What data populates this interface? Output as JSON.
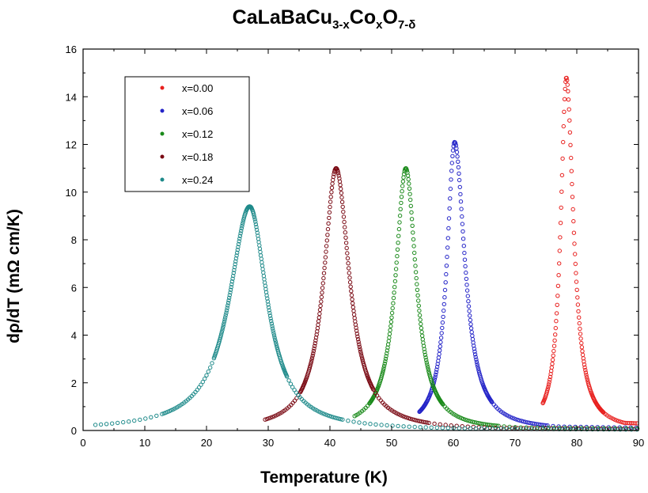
{
  "chart_data": {
    "type": "scatter",
    "title_main": "CaLaBaCu",
    "title_sub1": "3-x",
    "title_mid": "Co",
    "title_sub2": "x",
    "title_end": "O",
    "title_sub3": "7-δ",
    "xlabel": "Temperature (K)",
    "ylabel": "dρ/dT (mΩ cm/K)",
    "xlim": [
      0,
      90
    ],
    "ylim": [
      0,
      16
    ],
    "xticks": [
      "0",
      "10",
      "20",
      "30",
      "40",
      "50",
      "60",
      "70",
      "80",
      "90"
    ],
    "yticks": [
      "0",
      "2",
      "4",
      "6",
      "8",
      "10",
      "12",
      "14",
      "16"
    ],
    "legend_position": "top-left",
    "grid": false,
    "series": [
      {
        "name": "x=0.00",
        "color": "#e8201e",
        "peak_x": 78.3,
        "peak_y": 14.8,
        "width_left": 1.1,
        "width_right": 1.4,
        "x_start": 74.5,
        "x_end": 90,
        "tail": 0.4
      },
      {
        "name": "x=0.06",
        "color": "#2424c8",
        "peak_x": 60.2,
        "peak_y": 12.1,
        "width_left": 1.5,
        "width_right": 2.0,
        "x_start": 54.5,
        "x_end": 90,
        "tail": 0.25
      },
      {
        "name": "x=0.12",
        "color": "#1a8a1a",
        "peak_x": 52.3,
        "peak_y": 11.0,
        "width_left": 2.0,
        "width_right": 2.0,
        "x_start": 44,
        "x_end": 90,
        "tail": 0.2
      },
      {
        "name": "x=0.18",
        "color": "#7a0a14",
        "peak_x": 41.0,
        "peak_y": 11.0,
        "width_left": 2.4,
        "width_right": 2.6,
        "x_start": 29.5,
        "x_end": 90,
        "tail": 0.2
      },
      {
        "name": "x=0.24",
        "color": "#1e8a8a",
        "peak_x": 27.0,
        "peak_y": 9.4,
        "width_left": 4.0,
        "width_right": 3.4,
        "x_start": 2,
        "x_end": 90,
        "tail": 0.2
      }
    ]
  }
}
